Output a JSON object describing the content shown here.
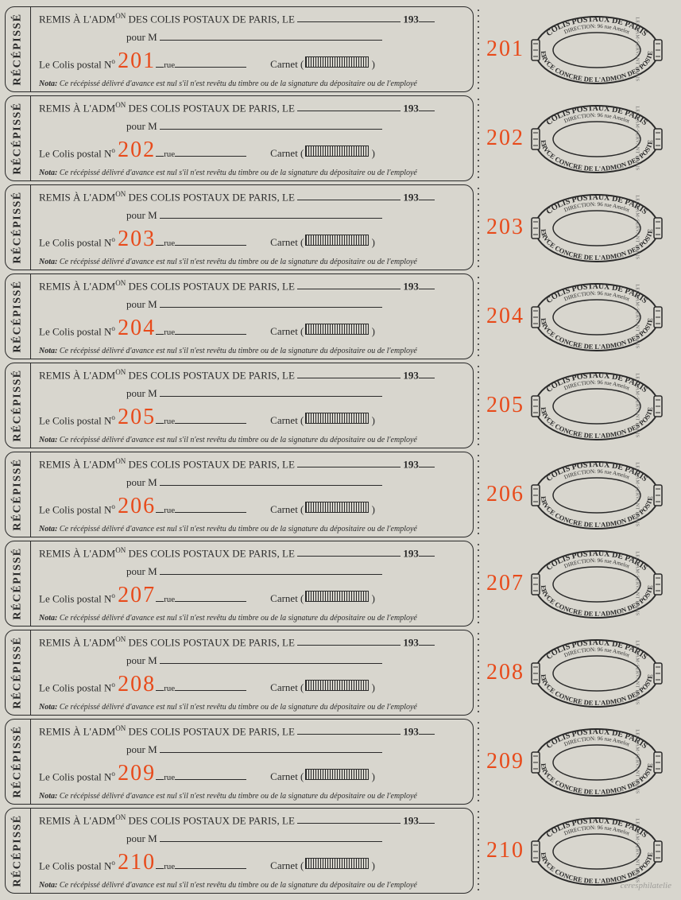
{
  "sheet": {
    "background_color": "#d8d6ce",
    "serial_color": "#e84a1a",
    "text_color": "#2a2a2a",
    "serials": [
      "201",
      "202",
      "203",
      "204",
      "205",
      "206",
      "207",
      "208",
      "209",
      "210"
    ],
    "recepisse_label": "RÉCÉPISSÉ",
    "printer_label": "LECRAM-SERVANT PARIS",
    "receipt": {
      "line1_prefix": "REMIS À L'ADM",
      "line1_sup": "ON",
      "line1_rest": " DES COLIS POSTAUX DE PARIS, LE",
      "line1_year": "193",
      "line2_pour": "pour M",
      "line3_label": "Le Colis postal N",
      "line3_sup": "o",
      "line3_rue": "rue",
      "line3_carnet": "Carnet (",
      "line3_close": ")",
      "line4_nota": "Nota:",
      "line4_text": "Ce récépissé délivré d'avance est nul s'il n'est revêtu du timbre ou de la signature du dépositaire ou de l'employé"
    },
    "stamp": {
      "top_text": "COLIS POSTAUX DE PARIS",
      "direction": "DIRECTION: 96 rue Amelot",
      "bottom_prefix": "SERV",
      "bottom_sup1": "CE",
      "bottom_mid": " CONC",
      "bottom_sup2": "RE",
      "bottom_de": " DE L'ADM",
      "bottom_sup3": "ON",
      "bottom_des": " DES",
      "bottom_postes": " POSTES"
    },
    "watermark": "ceresphilatelie"
  }
}
